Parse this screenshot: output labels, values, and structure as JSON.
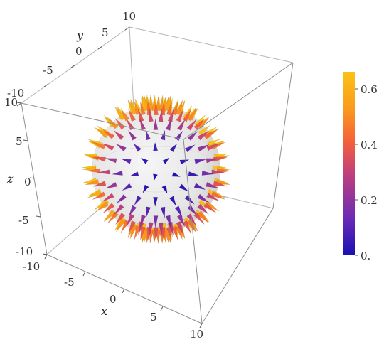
{
  "chart_data": {
    "type": "3d-vector-field",
    "title": "",
    "axes": {
      "x": {
        "label": "x",
        "range": [
          -10,
          10
        ],
        "ticks": [
          "-10",
          "-5",
          "0",
          "5",
          "10"
        ]
      },
      "y": {
        "label": "y",
        "range": [
          -10,
          10
        ],
        "ticks": [
          "-10",
          "-5",
          "0",
          "5",
          "10"
        ]
      },
      "z": {
        "label": "z",
        "range": [
          -10,
          10
        ],
        "ticks": [
          "-10",
          "-5",
          "0",
          "5",
          "10"
        ]
      }
    },
    "surface": {
      "shape": "sphere",
      "radius": 6,
      "center": [
        0,
        0,
        0
      ],
      "color": "#ececec"
    },
    "vector_field": {
      "direction": "radial-outward",
      "on": "sphere surface"
    },
    "colorbar": {
      "range": [
        0,
        0.66
      ],
      "ticks": [
        "0.",
        "0.2",
        "0.4",
        "0.6"
      ],
      "tick_values": [
        0,
        0.2,
        0.4,
        0.6
      ],
      "gradient": [
        "#1a0fb4",
        "#6a2bb5",
        "#c2407a",
        "#f4603a",
        "#fb9a1e",
        "#fbc215"
      ]
    },
    "grid": false,
    "legend": "right"
  }
}
